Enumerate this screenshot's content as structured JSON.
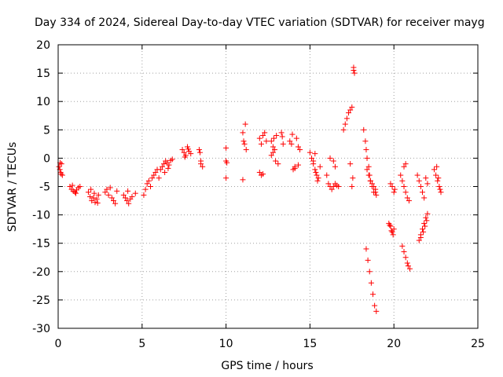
{
  "chart_data": {
    "type": "scatter",
    "title": "Day 334 of 2024, Sidereal Day-to-day VTEC variation (SDTVAR) for receiver mayg",
    "xlabel": "GPS time / hours",
    "ylabel": "SDTVAR / TECUs",
    "xlim": [
      0,
      25
    ],
    "ylim": [
      -30,
      20
    ],
    "xticks": [
      0,
      5,
      10,
      15,
      20,
      25
    ],
    "yticks": [
      20,
      15,
      10,
      5,
      0,
      -5,
      -10,
      -15,
      -20,
      -25,
      -30
    ],
    "grid": true,
    "marker": "+",
    "color": "#ff0000",
    "series": [
      {
        "name": "SDTVAR",
        "x": [
          0.05,
          0.1,
          0.15,
          0.2,
          0.25,
          0.12,
          0.18,
          0.7,
          0.8,
          0.9,
          1.0,
          1.1,
          1.2,
          1.3,
          0.85,
          1.05,
          1.8,
          1.9,
          2.0,
          2.1,
          2.2,
          2.3,
          2.4,
          1.95,
          2.15,
          2.35,
          2.8,
          2.9,
          3.0,
          3.2,
          3.3,
          3.4,
          3.5,
          3.1,
          3.9,
          4.0,
          4.1,
          4.2,
          4.3,
          4.4,
          4.6,
          4.15,
          5.1,
          5.2,
          5.3,
          5.4,
          5.5,
          5.6,
          5.7,
          5.8,
          5.9,
          6.0,
          6.1,
          6.2,
          6.3,
          6.4,
          6.5,
          6.6,
          6.7,
          6.8,
          6.35,
          6.55,
          7.4,
          7.5,
          7.6,
          7.7,
          7.8,
          7.9,
          7.55,
          7.75,
          8.4,
          8.5,
          8.6,
          8.5,
          8.45,
          10.0,
          10.0,
          10.05,
          10.0,
          11.0,
          11.05,
          11.1,
          11.2,
          11.15,
          11.0,
          12.0,
          12.1,
          12.2,
          12.3,
          12.4,
          12.0,
          12.1,
          12.2,
          12.7,
          12.8,
          12.9,
          13.0,
          12.85,
          12.95,
          13.1,
          12.7,
          12.8,
          13.3,
          13.4,
          13.35,
          13.8,
          13.9,
          14.0,
          14.1,
          14.2,
          14.3,
          14.4,
          14.1,
          14.3,
          13.95,
          15.0,
          15.1,
          15.2,
          15.3,
          15.4,
          15.5,
          15.2,
          15.3,
          15.35,
          15.45,
          15.6,
          16.0,
          16.1,
          16.2,
          16.3,
          16.4,
          16.5,
          16.6,
          16.7,
          16.2,
          16.4,
          16.5,
          17.0,
          17.1,
          17.2,
          17.3,
          17.4,
          17.5,
          17.55,
          17.6,
          17.6,
          17.65,
          17.4,
          17.5,
          18.2,
          18.3,
          18.35,
          18.4,
          18.5,
          18.55,
          18.6,
          18.7,
          18.8,
          18.9,
          18.95,
          18.4,
          18.5,
          18.6,
          18.7,
          18.8,
          18.9,
          18.35,
          18.45,
          18.55,
          18.65,
          18.75,
          18.85,
          18.95,
          19.7,
          19.8,
          19.9,
          20.0,
          19.75,
          19.85,
          19.95,
          19.8,
          19.9,
          20.0,
          20.05,
          20.4,
          20.5,
          20.6,
          20.7,
          20.8,
          20.9,
          20.5,
          20.6,
          20.7,
          20.8,
          20.85,
          20.95,
          20.6,
          20.7,
          21.4,
          21.5,
          21.6,
          21.7,
          21.8,
          21.9,
          22.0,
          21.5,
          21.6,
          21.7,
          21.8,
          21.9,
          22.0,
          21.6,
          21.75,
          21.85,
          21.95,
          22.4,
          22.5,
          22.6,
          22.7,
          22.8,
          22.55,
          22.65,
          22.75
        ],
        "y": [
          -1.5,
          -2.0,
          -2.5,
          -1.0,
          -3.0,
          -0.8,
          -2.8,
          -5.0,
          -5.5,
          -5.8,
          -6.0,
          -5.6,
          -5.2,
          -5.0,
          -4.8,
          -6.2,
          -6.0,
          -6.8,
          -7.5,
          -7.0,
          -7.8,
          -7.2,
          -6.5,
          -5.5,
          -6.2,
          -7.9,
          -6.0,
          -5.5,
          -6.5,
          -7.0,
          -7.5,
          -8.0,
          -5.8,
          -5.2,
          -6.5,
          -7.0,
          -7.5,
          -8.0,
          -7.2,
          -6.8,
          -6.2,
          -5.8,
          -6.5,
          -5.5,
          -4.5,
          -4.0,
          -5.0,
          -3.5,
          -3.0,
          -2.5,
          -2.0,
          -3.5,
          -2.0,
          -1.5,
          -1.0,
          -0.5,
          -0.8,
          -1.2,
          -0.4,
          -0.2,
          -2.5,
          -1.8,
          1.5,
          1.0,
          0.5,
          2.0,
          1.2,
          0.8,
          0.2,
          1.6,
          1.5,
          -0.5,
          -1.5,
          -1.0,
          1.0,
          1.8,
          -3.5,
          -0.8,
          -0.5,
          4.5,
          3.0,
          2.5,
          1.5,
          6.0,
          -3.8,
          3.5,
          2.5,
          4.0,
          4.5,
          3.0,
          -2.5,
          -3.0,
          -2.8,
          3.0,
          2.0,
          1.5,
          4.0,
          3.5,
          -0.5,
          -1.0,
          0.5,
          1.0,
          4.5,
          2.5,
          3.8,
          3.0,
          2.5,
          -2.0,
          -1.5,
          3.5,
          2.0,
          1.5,
          -1.8,
          -1.2,
          4.2,
          1.0,
          0.0,
          -1.0,
          -2.0,
          -3.0,
          -3.5,
          -0.5,
          0.8,
          -2.5,
          -4.0,
          -1.5,
          -3.0,
          -4.5,
          -5.0,
          -5.5,
          -5.0,
          -4.5,
          -4.8,
          -5.0,
          0.0,
          -0.5,
          -1.5,
          5.0,
          6.0,
          7.0,
          8.0,
          8.5,
          9.0,
          -3.5,
          15.5,
          16.0,
          15.0,
          -1.0,
          -5.0,
          5.0,
          3.0,
          1.5,
          0.0,
          -1.5,
          -3.0,
          -4.0,
          -4.5,
          -5.0,
          -6.0,
          -6.5,
          -2.0,
          -3.0,
          -4.0,
          -5.0,
          -6.0,
          -5.5,
          -16.0,
          -18.0,
          -20.0,
          -22.0,
          -24.0,
          -26.0,
          -27.0,
          -11.5,
          -12.0,
          -13.0,
          -12.5,
          -11.8,
          -12.8,
          -13.5,
          -4.5,
          -5.0,
          -6.0,
          -5.5,
          -3.0,
          -4.0,
          -5.0,
          -6.0,
          -7.0,
          -7.5,
          -15.5,
          -16.5,
          -17.5,
          -18.5,
          -19.0,
          -19.5,
          -1.5,
          -1.0,
          -3.0,
          -4.0,
          -5.0,
          -6.0,
          -7.0,
          -3.5,
          -4.5,
          -14.5,
          -13.5,
          -12.5,
          -11.5,
          -10.5,
          -9.8,
          -14.0,
          -13.0,
          -12.0,
          -11.0,
          -2.0,
          -3.0,
          -4.0,
          -5.0,
          -6.0,
          -1.5,
          -3.5,
          -5.5
        ]
      }
    ]
  }
}
